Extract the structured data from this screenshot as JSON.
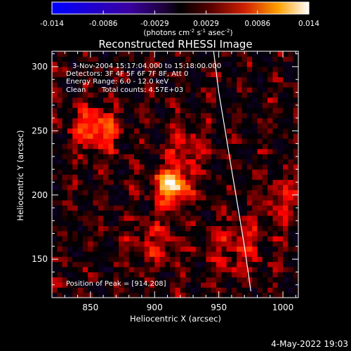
{
  "title": "Reconstructed RHESSI Image",
  "colorbar": {
    "ticks": [
      "-0.014",
      "-0.0086",
      "-0.0029",
      "0.0029",
      "0.0086",
      "0.014"
    ],
    "unit_parts": [
      "(photons cm",
      "-2",
      " s",
      "-1",
      " asec",
      "-2",
      ")"
    ]
  },
  "annotations": {
    "time": "3-Nov-2004 15:17:04.000 to 15:18:00.000",
    "detectors": "Detectors: 3F 4F 5F 6F 7F 8F, Att 0",
    "energy": "Energy Range: 6.0 - 12.0 keV",
    "clean_label": "Clean",
    "total_counts": "Total counts: 4.57E+03",
    "peak": "Position of Peak = [914,208]"
  },
  "footer_date": "4-May-2022 19:03",
  "chart_data": {
    "type": "heatmap",
    "title": "Reconstructed RHESSI Image",
    "xlabel": "Heliocentric X (arcsec)",
    "ylabel": "Heliocentric Y (arcsec)",
    "xlim": [
      820,
      1012
    ],
    "ylim": [
      120,
      312
    ],
    "xticks": [
      850,
      900,
      950,
      1000
    ],
    "yticks": [
      150,
      200,
      250,
      300
    ],
    "colorscale_range": [
      -0.014,
      0.014
    ],
    "peak_position": [
      914,
      208
    ],
    "sources": [
      {
        "x": 914,
        "y": 208,
        "sigma": 9,
        "amplitude": 1.0
      },
      {
        "x": 855,
        "y": 252,
        "sigma": 12,
        "amplitude": 0.55
      },
      {
        "x": 925,
        "y": 238,
        "sigma": 10,
        "amplitude": 0.35
      },
      {
        "x": 1002,
        "y": 195,
        "sigma": 12,
        "amplitude": 0.35
      },
      {
        "x": 965,
        "y": 160,
        "sigma": 15,
        "amplitude": 0.3
      },
      {
        "x": 900,
        "y": 165,
        "sigma": 14,
        "amplitude": 0.25
      }
    ],
    "limb_curve": [
      [
        946,
        312
      ],
      [
        950,
        280
      ],
      [
        955,
        250
      ],
      [
        960,
        220
      ],
      [
        965,
        190
      ],
      [
        970,
        160
      ],
      [
        975,
        125
      ]
    ],
    "grid": false
  }
}
